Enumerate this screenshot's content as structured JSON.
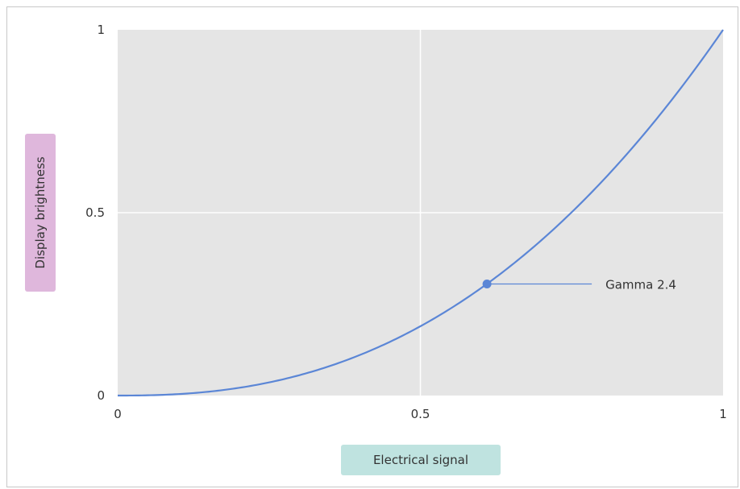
{
  "chart_data": {
    "type": "line",
    "title": "",
    "xlabel": "Electrical signal",
    "ylabel": "Display brightness",
    "xlim": [
      0,
      1
    ],
    "ylim": [
      0,
      1
    ],
    "x_ticks": [
      "0",
      "0.5",
      "1"
    ],
    "y_ticks": [
      "0",
      "0.5",
      "1"
    ],
    "grid": true,
    "series": [
      {
        "name": "Gamma 2.4",
        "color": "#5b86d6",
        "gamma": 2.4,
        "x": [
          0,
          0.05,
          0.1,
          0.15,
          0.2,
          0.25,
          0.3,
          0.35,
          0.4,
          0.45,
          0.5,
          0.55,
          0.6,
          0.65,
          0.7,
          0.75,
          0.8,
          0.85,
          0.9,
          0.95,
          1
        ],
        "y": [
          0,
          0.0008,
          0.004,
          0.0105,
          0.021,
          0.036,
          0.056,
          0.0805,
          0.111,
          0.147,
          0.189,
          0.238,
          0.293,
          0.355,
          0.425,
          0.502,
          0.586,
          0.677,
          0.776,
          0.884,
          1
        ]
      }
    ],
    "annotations": [
      {
        "label": "Gamma 2.4",
        "x": 0.61,
        "y": 0.305
      }
    ],
    "colors": {
      "plot_background": "#e5e5e5",
      "grid": "#ffffff",
      "line": "#5b86d6",
      "ylabel_box": "#dfb7dc",
      "xlabel_box": "#bfe3e0"
    }
  }
}
